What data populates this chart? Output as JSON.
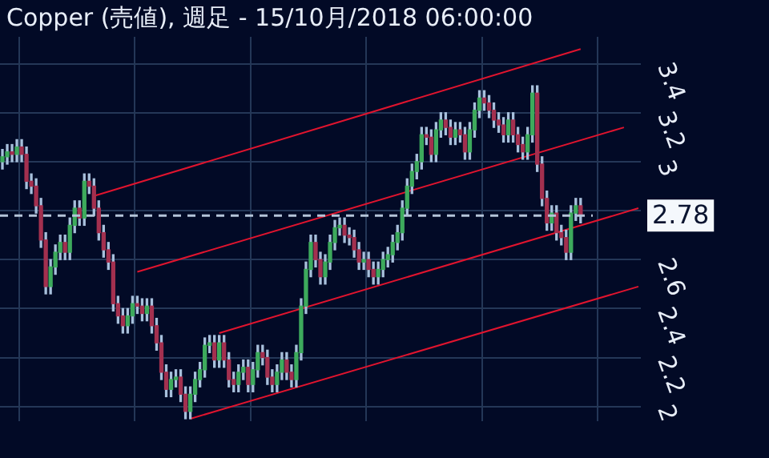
{
  "chart_data": {
    "type": "candlestick",
    "title": "Copper (売値), 週足 - 15/10月/2018 06:00:00",
    "categories": [
      null,
      null,
      null,
      null,
      null,
      null,
      null,
      null,
      null,
      null,
      null,
      null,
      null,
      null,
      null,
      null,
      null,
      null,
      null,
      null,
      null,
      null,
      null,
      null,
      null,
      null,
      null,
      null,
      null,
      null,
      null,
      null,
      null,
      null,
      null,
      null,
      null,
      null,
      null,
      null,
      null,
      null,
      null,
      null,
      null,
      null,
      null,
      null,
      null,
      null,
      null,
      null,
      null,
      null,
      null,
      null,
      null,
      null,
      null,
      null,
      null,
      null,
      null,
      null,
      null,
      null,
      null,
      null,
      null,
      null,
      null,
      null,
      null,
      null,
      null,
      null,
      null,
      null,
      null,
      null,
      null,
      null,
      null,
      null,
      null,
      null,
      null,
      null,
      null,
      null,
      null,
      null,
      null,
      null,
      null,
      null,
      null,
      null,
      null,
      null,
      null,
      null,
      null,
      null,
      null,
      null,
      null,
      null,
      null,
      null,
      null,
      null,
      null,
      null,
      null,
      null,
      null,
      null,
      null,
      null,
      null,
      null,
      null,
      null,
      null,
      null,
      null,
      null,
      null,
      null,
      null,
      null,
      null
    ],
    "series": [
      {
        "color": "#a8c0dc",
        "ohlc": [
          [
            3.0,
            3.05,
            2.97,
            3.02
          ],
          [
            3.02,
            3.07,
            2.99,
            3.04
          ],
          [
            3.04,
            3.07,
            3.0,
            3.03
          ],
          [
            3.03,
            3.09,
            3.0,
            3.06
          ],
          [
            3.06,
            3.09,
            3.0,
            3.03
          ],
          [
            3.03,
            3.06,
            2.89,
            2.92
          ],
          [
            2.92,
            2.95,
            2.87,
            2.9
          ],
          [
            2.9,
            2.93,
            2.79,
            2.82
          ],
          [
            2.82,
            2.85,
            2.65,
            2.68
          ],
          [
            2.68,
            2.71,
            2.46,
            2.49
          ],
          [
            2.49,
            2.6,
            2.46,
            2.57
          ],
          [
            2.57,
            2.66,
            2.54,
            2.63
          ],
          [
            2.63,
            2.7,
            2.6,
            2.67
          ],
          [
            2.67,
            2.7,
            2.6,
            2.63
          ],
          [
            2.63,
            2.77,
            2.6,
            2.74
          ],
          [
            2.74,
            2.84,
            2.71,
            2.81
          ],
          [
            2.81,
            2.84,
            2.74,
            2.77
          ],
          [
            2.77,
            2.95,
            2.74,
            2.92
          ],
          [
            2.92,
            2.95,
            2.87,
            2.9
          ],
          [
            2.9,
            2.93,
            2.78,
            2.81
          ],
          [
            2.81,
            2.84,
            2.68,
            2.71
          ],
          [
            2.71,
            2.74,
            2.61,
            2.64
          ],
          [
            2.64,
            2.67,
            2.56,
            2.59
          ],
          [
            2.59,
            2.62,
            2.39,
            2.42
          ],
          [
            2.42,
            2.45,
            2.34,
            2.37
          ],
          [
            2.37,
            2.4,
            2.3,
            2.33
          ],
          [
            2.33,
            2.4,
            2.3,
            2.37
          ],
          [
            2.37,
            2.45,
            2.34,
            2.42
          ],
          [
            2.42,
            2.45,
            2.38,
            2.41
          ],
          [
            2.41,
            2.44,
            2.35,
            2.38
          ],
          [
            2.38,
            2.44,
            2.35,
            2.41
          ],
          [
            2.41,
            2.44,
            2.3,
            2.33
          ],
          [
            2.33,
            2.36,
            2.23,
            2.26
          ],
          [
            2.26,
            2.29,
            2.11,
            2.14
          ],
          [
            2.14,
            2.17,
            2.04,
            2.07
          ],
          [
            2.07,
            2.14,
            2.04,
            2.11
          ],
          [
            2.11,
            2.15,
            2.08,
            2.12
          ],
          [
            2.12,
            2.15,
            2.02,
            2.05
          ],
          [
            2.05,
            2.08,
            1.95,
            1.98
          ],
          [
            1.98,
            2.08,
            1.95,
            2.05
          ],
          [
            2.05,
            2.14,
            2.02,
            2.11
          ],
          [
            2.11,
            2.18,
            2.08,
            2.15
          ],
          [
            2.15,
            2.28,
            2.12,
            2.25
          ],
          [
            2.25,
            2.29,
            2.22,
            2.26
          ],
          [
            2.26,
            2.29,
            2.16,
            2.19
          ],
          [
            2.19,
            2.29,
            2.16,
            2.26
          ],
          [
            2.26,
            2.29,
            2.16,
            2.19
          ],
          [
            2.19,
            2.22,
            2.08,
            2.11
          ],
          [
            2.11,
            2.14,
            2.06,
            2.09
          ],
          [
            2.09,
            2.17,
            2.06,
            2.14
          ],
          [
            2.14,
            2.19,
            2.11,
            2.16
          ],
          [
            2.16,
            2.19,
            2.06,
            2.09
          ],
          [
            2.09,
            2.18,
            2.06,
            2.15
          ],
          [
            2.15,
            2.25,
            2.12,
            2.22
          ],
          [
            2.22,
            2.25,
            2.17,
            2.2
          ],
          [
            2.2,
            2.23,
            2.09,
            2.12
          ],
          [
            2.12,
            2.15,
            2.06,
            2.09
          ],
          [
            2.09,
            2.17,
            2.06,
            2.14
          ],
          [
            2.14,
            2.22,
            2.11,
            2.19
          ],
          [
            2.19,
            2.22,
            2.11,
            2.14
          ],
          [
            2.14,
            2.17,
            2.08,
            2.11
          ],
          [
            2.11,
            2.25,
            2.08,
            2.22
          ],
          [
            2.22,
            2.44,
            2.19,
            2.41
          ],
          [
            2.41,
            2.59,
            2.38,
            2.56
          ],
          [
            2.56,
            2.7,
            2.53,
            2.67
          ],
          [
            2.67,
            2.7,
            2.57,
            2.6
          ],
          [
            2.6,
            2.63,
            2.5,
            2.53
          ],
          [
            2.53,
            2.62,
            2.5,
            2.59
          ],
          [
            2.59,
            2.7,
            2.56,
            2.67
          ],
          [
            2.67,
            2.76,
            2.64,
            2.73
          ],
          [
            2.73,
            2.77,
            2.7,
            2.74
          ],
          [
            2.74,
            2.77,
            2.67,
            2.7
          ],
          [
            2.7,
            2.73,
            2.66,
            2.69
          ],
          [
            2.69,
            2.72,
            2.61,
            2.64
          ],
          [
            2.64,
            2.67,
            2.56,
            2.59
          ],
          [
            2.59,
            2.63,
            2.56,
            2.6
          ],
          [
            2.6,
            2.63,
            2.53,
            2.56
          ],
          [
            2.56,
            2.59,
            2.5,
            2.53
          ],
          [
            2.53,
            2.59,
            2.5,
            2.56
          ],
          [
            2.56,
            2.63,
            2.53,
            2.6
          ],
          [
            2.6,
            2.65,
            2.57,
            2.62
          ],
          [
            2.62,
            2.7,
            2.59,
            2.67
          ],
          [
            2.67,
            2.74,
            2.64,
            2.71
          ],
          [
            2.71,
            2.84,
            2.68,
            2.81
          ],
          [
            2.81,
            2.93,
            2.78,
            2.9
          ],
          [
            2.9,
            2.99,
            2.87,
            2.96
          ],
          [
            2.96,
            3.03,
            2.93,
            3.0
          ],
          [
            3.0,
            3.14,
            2.97,
            3.11
          ],
          [
            3.11,
            3.14,
            3.07,
            3.1
          ],
          [
            3.1,
            3.13,
            3.0,
            3.03
          ],
          [
            3.03,
            3.16,
            3.0,
            3.13
          ],
          [
            3.13,
            3.2,
            3.1,
            3.17
          ],
          [
            3.17,
            3.2,
            3.11,
            3.14
          ],
          [
            3.14,
            3.17,
            3.07,
            3.1
          ],
          [
            3.1,
            3.16,
            3.07,
            3.13
          ],
          [
            3.13,
            3.16,
            3.08,
            3.11
          ],
          [
            3.11,
            3.14,
            3.01,
            3.04
          ],
          [
            3.04,
            3.16,
            3.01,
            3.13
          ],
          [
            3.13,
            3.24,
            3.1,
            3.21
          ],
          [
            3.21,
            3.29,
            3.18,
            3.26
          ],
          [
            3.26,
            3.29,
            3.21,
            3.24
          ],
          [
            3.24,
            3.27,
            3.18,
            3.21
          ],
          [
            3.21,
            3.24,
            3.14,
            3.17
          ],
          [
            3.17,
            3.2,
            3.12,
            3.15
          ],
          [
            3.15,
            3.18,
            3.08,
            3.11
          ],
          [
            3.11,
            3.2,
            3.08,
            3.17
          ],
          [
            3.17,
            3.2,
            3.08,
            3.11
          ],
          [
            3.11,
            3.14,
            3.04,
            3.07
          ],
          [
            3.07,
            3.1,
            3.01,
            3.04
          ],
          [
            3.04,
            3.14,
            3.01,
            3.11
          ],
          [
            3.11,
            3.31,
            3.08,
            3.28
          ],
          [
            3.28,
            3.31,
            2.96,
            2.99
          ],
          [
            2.99,
            3.02,
            2.82,
            2.85
          ],
          [
            2.85,
            2.88,
            2.72,
            2.75
          ],
          [
            2.75,
            2.82,
            2.72,
            2.79
          ],
          [
            2.79,
            2.82,
            2.68,
            2.71
          ],
          [
            2.71,
            2.74,
            2.66,
            2.69
          ],
          [
            2.69,
            2.72,
            2.6,
            2.63
          ],
          [
            2.63,
            2.82,
            2.6,
            2.79
          ],
          [
            2.79,
            2.85,
            2.76,
            2.82
          ],
          [
            2.82,
            2.85,
            2.75,
            2.78
          ],
          null,
          null,
          null,
          null,
          null,
          null,
          null,
          null,
          null,
          null,
          null,
          null
        ],
        "colors": [
          "#3daa5c",
          "#3daa5c",
          "#a3304f",
          "#3daa5c",
          "#a3304f",
          "#a3304f",
          "#a3304f",
          "#a3304f",
          "#a3304f",
          "#a3304f",
          "#3daa5c",
          "#3daa5c",
          "#3daa5c",
          "#a3304f",
          "#3daa5c",
          "#3daa5c",
          "#a3304f",
          "#3daa5c",
          "#a3304f",
          "#a3304f",
          "#a3304f",
          "#a3304f",
          "#a3304f",
          "#a3304f",
          "#a3304f",
          "#a3304f",
          "#3daa5c",
          "#3daa5c",
          "#a3304f",
          "#a3304f",
          "#3daa5c",
          "#a3304f",
          "#a3304f",
          "#a3304f",
          "#a3304f",
          "#3daa5c",
          "#3daa5c",
          "#a3304f",
          "#a3304f",
          "#3daa5c",
          "#3daa5c",
          "#3daa5c",
          "#3daa5c",
          "#3daa5c",
          "#a3304f",
          "#3daa5c",
          "#a3304f",
          "#a3304f",
          "#a3304f",
          "#3daa5c",
          "#3daa5c",
          "#a3304f",
          "#3daa5c",
          "#3daa5c",
          "#a3304f",
          "#a3304f",
          "#a3304f",
          "#3daa5c",
          "#3daa5c",
          "#a3304f",
          "#a3304f",
          "#3daa5c",
          "#3daa5c",
          "#3daa5c",
          "#3daa5c",
          "#a3304f",
          "#a3304f",
          "#3daa5c",
          "#3daa5c",
          "#3daa5c",
          "#3daa5c",
          "#a3304f",
          "#a3304f",
          "#a3304f",
          "#a3304f",
          "#3daa5c",
          "#a3304f",
          "#a3304f",
          "#3daa5c",
          "#3daa5c",
          "#3daa5c",
          "#3daa5c",
          "#3daa5c",
          "#3daa5c",
          "#3daa5c",
          "#3daa5c",
          "#3daa5c",
          "#3daa5c",
          "#a3304f",
          "#a3304f",
          "#3daa5c",
          "#3daa5c",
          "#a3304f",
          "#a3304f",
          "#3daa5c",
          "#a3304f",
          "#a3304f",
          "#3daa5c",
          "#3daa5c",
          "#3daa5c",
          "#a3304f",
          "#a3304f",
          "#a3304f",
          "#a3304f",
          "#a3304f",
          "#3daa5c",
          "#a3304f",
          "#a3304f",
          "#a3304f",
          "#3daa5c",
          "#3daa5c",
          "#a3304f",
          "#a3304f",
          "#a3304f",
          "#3daa5c",
          "#a3304f",
          "#a3304f",
          "#a3304f",
          "#3daa5c",
          "#3daa5c",
          "#a3304f",
          null,
          null,
          null,
          null,
          null,
          null,
          null,
          null,
          null,
          null,
          null,
          null
        ]
      },
      {
        "type": "line",
        "color": "#e0142e",
        "values": [
          null,
          null,
          null,
          null,
          null,
          null,
          null,
          null,
          null,
          null,
          null,
          null,
          null,
          null,
          null,
          null,
          null,
          null,
          null,
          2.86,
          null,
          null,
          null,
          null,
          null,
          null,
          null,
          null,
          null,
          null,
          null,
          null,
          null,
          null,
          null,
          null,
          null,
          null,
          null,
          null,
          null,
          null,
          null,
          null,
          null,
          null,
          null,
          null,
          null,
          null,
          null,
          null,
          null,
          null,
          null,
          null,
          null,
          null,
          null,
          null,
          null,
          null,
          null,
          null,
          null,
          null,
          null,
          null,
          null,
          null,
          null,
          null,
          null,
          null,
          null,
          null,
          null,
          null,
          null,
          null,
          null,
          null,
          null,
          null,
          null,
          null,
          null,
          null,
          null,
          null,
          null,
          null,
          null,
          null,
          null,
          null,
          null,
          null,
          null,
          null,
          null,
          null,
          null,
          null,
          null,
          null,
          null,
          null,
          null,
          null,
          null,
          null,
          null,
          null,
          null,
          null,
          null,
          null,
          null,
          null,
          3.46,
          null,
          null,
          null,
          null,
          null,
          null,
          null,
          null,
          null,
          null,
          null,
          null
        ]
      },
      {
        "type": "line",
        "color": "#e0142e",
        "values": [
          null,
          null,
          null,
          null,
          null,
          null,
          null,
          null,
          null,
          null,
          null,
          null,
          null,
          null,
          null,
          null,
          null,
          null,
          null,
          null,
          null,
          null,
          null,
          null,
          null,
          null,
          null,
          null,
          2.55,
          null,
          null,
          null,
          null,
          null,
          null,
          null,
          null,
          null,
          null,
          null,
          null,
          null,
          null,
          null,
          null,
          null,
          null,
          null,
          null,
          null,
          null,
          null,
          null,
          null,
          null,
          null,
          null,
          null,
          null,
          null,
          null,
          null,
          null,
          null,
          null,
          null,
          null,
          null,
          null,
          null,
          null,
          null,
          null,
          null,
          null,
          null,
          null,
          null,
          null,
          null,
          null,
          null,
          null,
          null,
          null,
          null,
          null,
          null,
          null,
          null,
          null,
          null,
          null,
          null,
          null,
          null,
          null,
          null,
          null,
          null,
          null,
          null,
          null,
          null,
          null,
          null,
          null,
          null,
          null,
          null,
          null,
          null,
          null,
          null,
          null,
          null,
          null,
          null,
          null,
          null,
          null,
          null,
          null,
          null,
          null,
          null,
          null,
          null,
          null,
          3.14,
          null,
          null,
          null
        ]
      },
      {
        "type": "line",
        "color": "#e0142e",
        "values": [
          null,
          null,
          null,
          null,
          null,
          null,
          null,
          null,
          null,
          null,
          null,
          null,
          null,
          null,
          null,
          null,
          null,
          null,
          null,
          null,
          null,
          null,
          null,
          null,
          null,
          null,
          null,
          null,
          null,
          null,
          null,
          null,
          null,
          null,
          null,
          null,
          null,
          null,
          null,
          null,
          null,
          null,
          null,
          null,
          null,
          2.3,
          null,
          null,
          null,
          null,
          null,
          null,
          null,
          null,
          null,
          null,
          null,
          null,
          null,
          null,
          null,
          null,
          null,
          null,
          null,
          null,
          null,
          null,
          null,
          null,
          null,
          null,
          null,
          null,
          null,
          null,
          null,
          null,
          null,
          null,
          null,
          null,
          null,
          null,
          null,
          null,
          null,
          null,
          null,
          null,
          null,
          null,
          null,
          null,
          null,
          null,
          null,
          null,
          null,
          null,
          null,
          null,
          null,
          null,
          null,
          null,
          null,
          null,
          null,
          null,
          null,
          null,
          null,
          null,
          null,
          null,
          null,
          null,
          null,
          null,
          null,
          null,
          null,
          null,
          null,
          null,
          null,
          null,
          null,
          null,
          null,
          null,
          2.81
        ]
      },
      {
        "type": "line",
        "color": "#e0142e",
        "values": [
          null,
          null,
          null,
          null,
          null,
          null,
          null,
          null,
          null,
          null,
          null,
          null,
          null,
          null,
          null,
          null,
          null,
          null,
          null,
          null,
          null,
          null,
          null,
          null,
          null,
          null,
          null,
          null,
          null,
          null,
          null,
          null,
          null,
          null,
          null,
          null,
          null,
          null,
          null,
          1.95,
          null,
          null,
          null,
          null,
          null,
          null,
          null,
          null,
          null,
          null,
          null,
          null,
          null,
          null,
          null,
          null,
          null,
          null,
          null,
          null,
          null,
          null,
          null,
          null,
          null,
          null,
          null,
          null,
          null,
          null,
          null,
          null,
          null,
          null,
          null,
          null,
          null,
          null,
          null,
          null,
          null,
          null,
          null,
          null,
          null,
          null,
          null,
          null,
          null,
          null,
          null,
          null,
          null,
          null,
          null,
          null,
          null,
          null,
          null,
          null,
          null,
          null,
          null,
          null,
          null,
          null,
          null,
          null,
          null,
          null,
          null,
          null,
          null,
          null,
          null,
          null,
          null,
          null,
          null,
          null,
          null,
          null,
          null,
          null,
          null,
          null,
          null,
          null,
          null,
          null,
          null,
          null,
          2.49
        ]
      }
    ],
    "ylim": [
      1.94,
      3.51
    ],
    "yticks": [
      2,
      2.2,
      2.4,
      2.6,
      {
        "value": 2.8,
        "label": null
      },
      3,
      3.2,
      3.4
    ],
    "ref_lines": [
      {
        "axis": "y",
        "value": 2.78,
        "label": "2.78",
        "color": "#b4c4d8",
        "line_style": "dashed"
      }
    ],
    "grid": true,
    "legend": false,
    "tick_labels": "y",
    "marker": "none"
  }
}
